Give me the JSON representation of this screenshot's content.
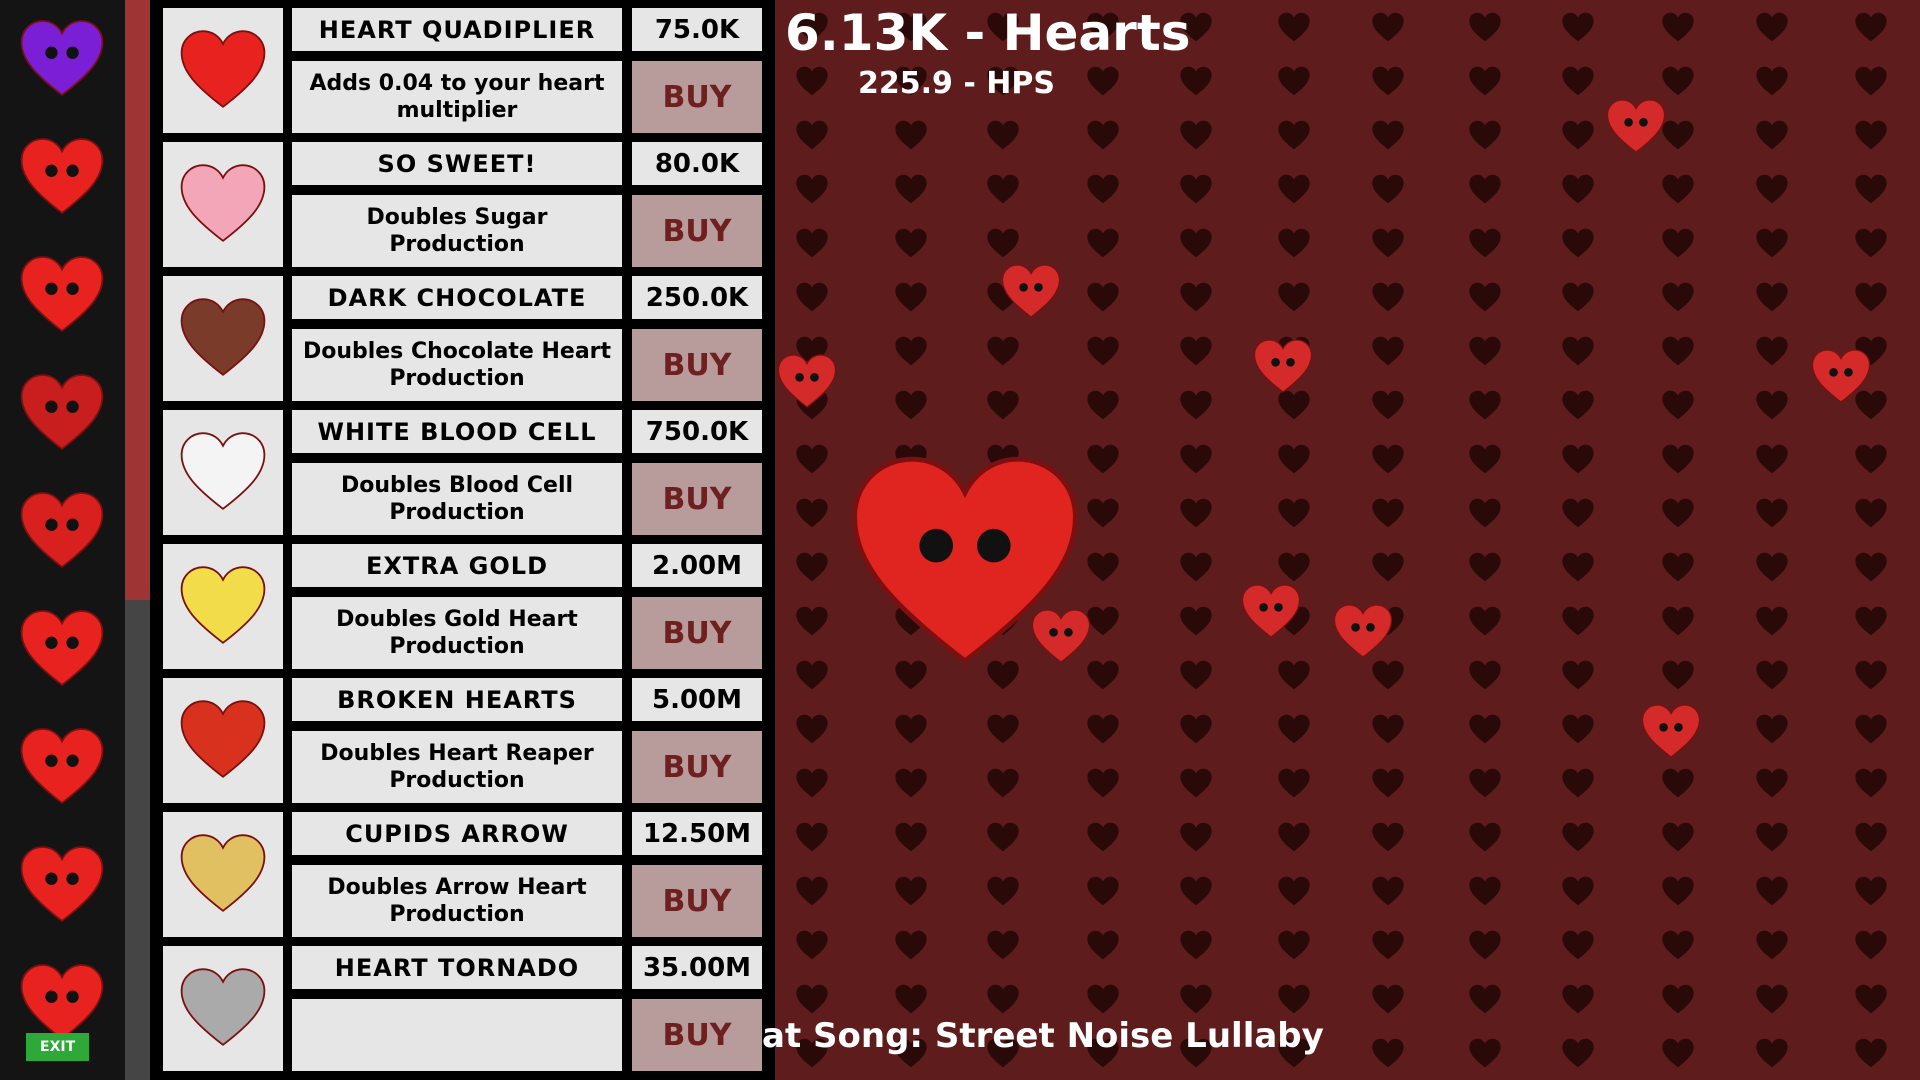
{
  "hud": {
    "hearts": "6.13K - Hearts",
    "hps": "225.9 - HPS",
    "song": "at Song: Street Noise Lullaby"
  },
  "sidebar": {
    "items": [
      {
        "name": "purple-heart",
        "color": "#7a1fd6"
      },
      {
        "name": "happy-heart",
        "color": "#e8231f"
      },
      {
        "name": "twin-hearts",
        "color": "#e8231f"
      },
      {
        "name": "reaper-heart",
        "color": "#c81e1e"
      },
      {
        "name": "bandaged-heart",
        "color": "#d8201e"
      },
      {
        "name": "artist-heart",
        "color": "#e8231f"
      },
      {
        "name": "sign-heart",
        "color": "#e8231f"
      },
      {
        "name": "gear-heart",
        "color": "#e8231f"
      },
      {
        "name": "exit-heart",
        "color": "#e8231f",
        "label": "EXIT"
      }
    ]
  },
  "shop": {
    "items": [
      {
        "title": "HEART QUADIPLIER",
        "price": "75.0K",
        "desc": "Adds 0.04 to your heart multiplier",
        "buy": "BUY",
        "icon": "hearts-icon"
      },
      {
        "title": "SO SWEET!",
        "price": "80.0K",
        "desc": "Doubles Sugar Production",
        "buy": "BUY",
        "icon": "donut-icon"
      },
      {
        "title": "DARK CHOCOLATE",
        "price": "250.0K",
        "desc": "Doubles Chocolate Heart Production",
        "buy": "BUY",
        "icon": "chocolate-icon"
      },
      {
        "title": "WHITE BLOOD CELL",
        "price": "750.0K",
        "desc": "Doubles Blood Cell Production",
        "buy": "BUY",
        "icon": "blood-cell-icon"
      },
      {
        "title": "EXTRA GOLD",
        "price": "2.00M",
        "desc": "Doubles Gold Heart Production",
        "buy": "BUY",
        "icon": "gold-heart-icon"
      },
      {
        "title": "BROKEN HEARTS",
        "price": "5.00M",
        "desc": "Doubles Heart Reaper Production",
        "buy": "BUY",
        "icon": "broken-heart-icon"
      },
      {
        "title": "CUPIDS ARROW",
        "price": "12.50M",
        "desc": "Doubles Arrow Heart Production",
        "buy": "BUY",
        "icon": "arrow-icon"
      },
      {
        "title": "HEART TORNADO",
        "price": "35.00M",
        "desc": "",
        "buy": "BUY",
        "icon": "tornado-icon"
      }
    ]
  },
  "colors": {
    "background": "#5e1c1c",
    "buy_bg": "#b89c9c",
    "buy_text": "#6e1f1f",
    "scroll_thumb": "#9e3434"
  }
}
